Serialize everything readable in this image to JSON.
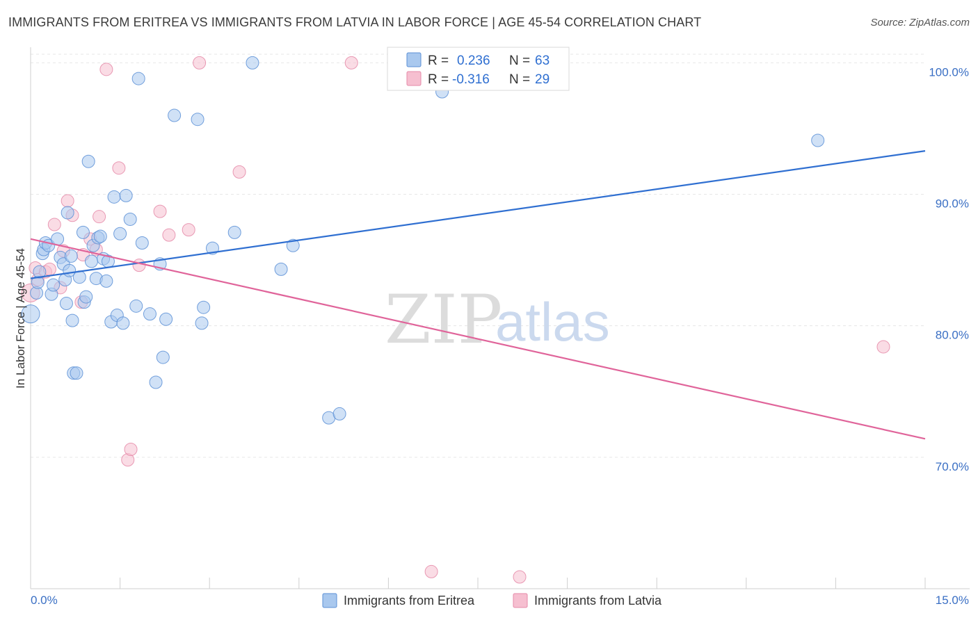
{
  "title": "IMMIGRANTS FROM ERITREA VS IMMIGRANTS FROM LATVIA IN LABOR FORCE | AGE 45-54 CORRELATION CHART",
  "source": "Source: ZipAtlas.com",
  "watermark": {
    "zip": "ZIP",
    "atlas": "atlas"
  },
  "colors": {
    "eritrea_fill": "#a9c8ee",
    "eritrea_stroke": "#5b8fd6",
    "eritrea_line": "#2f6fd1",
    "latvia_fill": "#f6bfd0",
    "latvia_stroke": "#e58aa8",
    "latvia_line": "#e0649a",
    "grid": "#e6e6e6",
    "tick_text": "#3a6fc4"
  },
  "legend": {
    "r_label": "R =",
    "n_label": "N =",
    "rows": [
      {
        "r": "0.236",
        "n": "63"
      },
      {
        "r": "-0.316",
        "n": "29"
      }
    ]
  },
  "chart_data": {
    "type": "scatter",
    "title": "IMMIGRANTS FROM ERITREA VS IMMIGRANTS FROM LATVIA IN LABOR FORCE | AGE 45-54 CORRELATION CHART",
    "xlabel": "",
    "ylabel": "In Labor Force | Age 45-54",
    "xlim": [
      0,
      15
    ],
    "ylim": [
      60,
      101.5
    ],
    "x_tick_labels": [
      "0.0%",
      "15.0%"
    ],
    "y_ticks": [
      70,
      80,
      90,
      100
    ],
    "y_tick_labels": [
      "70.0%",
      "80.0%",
      "90.0%",
      "100.0%"
    ],
    "legend_position": "bottom",
    "series": [
      {
        "name": "Immigrants from Eritrea",
        "R": 0.236,
        "N": 63,
        "trend": {
          "x": [
            0,
            15
          ],
          "y": [
            83.6,
            93.3
          ]
        },
        "points": [
          [
            0.0,
            80.9
          ],
          [
            0.1,
            82.5
          ],
          [
            0.12,
            83.3
          ],
          [
            0.15,
            84.1
          ],
          [
            0.2,
            85.5
          ],
          [
            0.22,
            85.8
          ],
          [
            0.25,
            86.3
          ],
          [
            0.3,
            86.1
          ],
          [
            0.35,
            82.4
          ],
          [
            0.38,
            83.1
          ],
          [
            0.45,
            86.6
          ],
          [
            0.5,
            85.2
          ],
          [
            0.55,
            84.7
          ],
          [
            0.58,
            83.5
          ],
          [
            0.6,
            81.7
          ],
          [
            0.65,
            84.2
          ],
          [
            0.68,
            85.3
          ],
          [
            0.7,
            80.4
          ],
          [
            0.72,
            76.4
          ],
          [
            0.77,
            76.4
          ],
          [
            0.82,
            83.7
          ],
          [
            0.88,
            87.1
          ],
          [
            0.9,
            81.8
          ],
          [
            0.93,
            82.2
          ],
          [
            0.97,
            92.5
          ],
          [
            1.02,
            84.9
          ],
          [
            1.05,
            86.1
          ],
          [
            1.1,
            83.6
          ],
          [
            1.13,
            86.7
          ],
          [
            1.17,
            86.8
          ],
          [
            1.22,
            85.1
          ],
          [
            1.27,
            83.4
          ],
          [
            1.3,
            84.9
          ],
          [
            1.35,
            80.3
          ],
          [
            1.4,
            89.8
          ],
          [
            1.45,
            80.8
          ],
          [
            1.5,
            87.0
          ],
          [
            1.55,
            80.2
          ],
          [
            1.6,
            89.9
          ],
          [
            1.67,
            88.1
          ],
          [
            1.77,
            81.5
          ],
          [
            1.81,
            98.8
          ],
          [
            1.87,
            86.3
          ],
          [
            2.0,
            80.9
          ],
          [
            2.1,
            75.7
          ],
          [
            2.17,
            84.7
          ],
          [
            2.22,
            77.6
          ],
          [
            2.27,
            80.5
          ],
          [
            2.41,
            96.0
          ],
          [
            2.8,
            95.7
          ],
          [
            2.87,
            80.2
          ],
          [
            2.9,
            81.4
          ],
          [
            3.05,
            85.9
          ],
          [
            3.42,
            87.1
          ],
          [
            3.72,
            100.0
          ],
          [
            4.2,
            84.3
          ],
          [
            4.4,
            86.1
          ],
          [
            5.0,
            73.0
          ],
          [
            5.18,
            73.3
          ],
          [
            6.72,
            98.9
          ],
          [
            6.9,
            97.8
          ],
          [
            13.2,
            94.1
          ],
          [
            0.62,
            88.6
          ]
        ]
      },
      {
        "name": "Immigrants from Latvia",
        "R": -0.316,
        "N": 29,
        "trend": {
          "x": [
            0,
            15
          ],
          "y": [
            86.6,
            71.4
          ]
        },
        "points": [
          [
            0.0,
            82.5
          ],
          [
            0.08,
            84.4
          ],
          [
            0.12,
            83.5
          ],
          [
            0.25,
            84.1
          ],
          [
            0.32,
            84.3
          ],
          [
            0.4,
            87.7
          ],
          [
            0.5,
            82.9
          ],
          [
            0.55,
            85.7
          ],
          [
            0.62,
            89.5
          ],
          [
            0.7,
            88.4
          ],
          [
            0.85,
            81.8
          ],
          [
            0.88,
            85.4
          ],
          [
            1.0,
            86.6
          ],
          [
            1.1,
            85.8
          ],
          [
            1.15,
            88.3
          ],
          [
            1.27,
            99.5
          ],
          [
            1.48,
            92.0
          ],
          [
            1.63,
            69.8
          ],
          [
            1.68,
            70.6
          ],
          [
            1.82,
            84.6
          ],
          [
            2.17,
            88.7
          ],
          [
            2.32,
            86.9
          ],
          [
            2.65,
            87.3
          ],
          [
            2.83,
            100.0
          ],
          [
            3.5,
            91.7
          ],
          [
            5.38,
            100.0
          ],
          [
            6.72,
            61.3
          ],
          [
            8.2,
            60.9
          ],
          [
            14.3,
            78.4
          ]
        ]
      }
    ]
  }
}
